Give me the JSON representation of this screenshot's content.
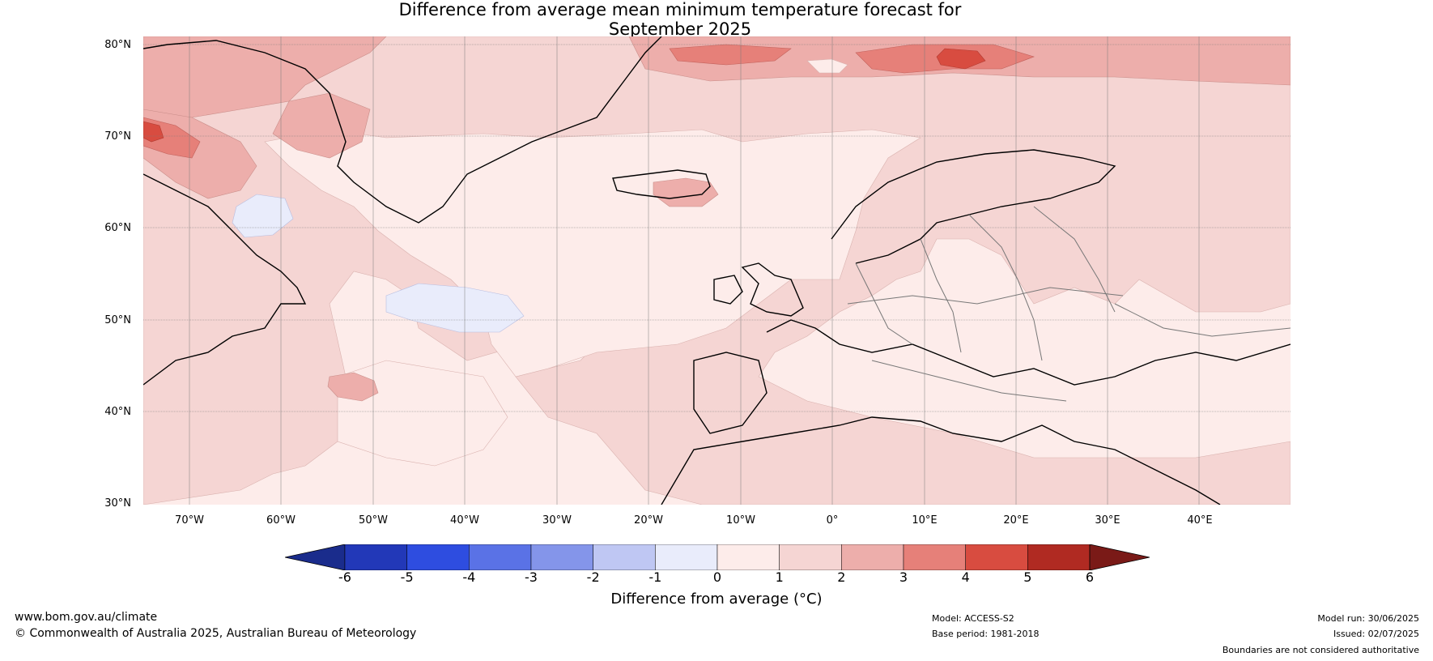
{
  "title_line1": "Difference from average mean minimum temperature forecast for",
  "title_line2": "September 2025",
  "lat_labels": [
    "80°N",
    "70°N",
    "60°N",
    "50°N",
    "40°N",
    "30°N"
  ],
  "lon_labels": [
    "70°W",
    "60°W",
    "50°W",
    "40°W",
    "30°W",
    "20°W",
    "10°W",
    "0°",
    "10°E",
    "20°E",
    "30°E",
    "40°E"
  ],
  "colorbar": {
    "ticks": [
      "-6",
      "-5",
      "-4",
      "-3",
      "-2",
      "-1",
      "0",
      "1",
      "2",
      "3",
      "4",
      "5",
      "6"
    ],
    "colors": [
      "#1a2c8c",
      "#2238b8",
      "#2e4de0",
      "#5a72e6",
      "#8495ea",
      "#bfc7f3",
      "#e9ecfb",
      "#fdecea",
      "#f5d5d3",
      "#edaeab",
      "#e68079",
      "#d84c40",
      "#b02a22",
      "#7a1a17"
    ],
    "label": "Difference from average (°C)"
  },
  "footer": {
    "url": "www.bom.gov.au/climate",
    "copyright": "© Commonwealth of Australia 2025, Australian Bureau of Meteorology",
    "model": "Model: ACCESS-S2",
    "base_period": "Base period: 1981-2018",
    "model_run": "Model run: 30/06/2025",
    "issued": "Issued: 02/07/2025",
    "disclaimer": "Boundaries are not considered authoritative"
  }
}
